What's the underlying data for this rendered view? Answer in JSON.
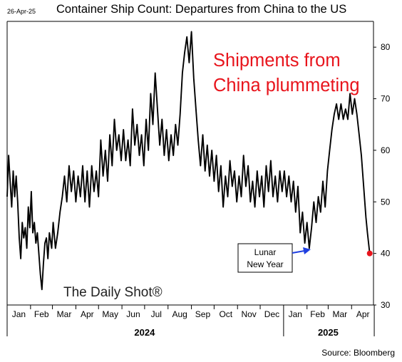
{
  "header": {
    "date": "26-Apr-25",
    "title": "Container Ship Count: Departures from China to the US"
  },
  "footer": {
    "source": "Source: Bloomberg"
  },
  "watermark": "The Daily Shot®",
  "colors": {
    "line": "#000000",
    "annotation_red": "#e8141c",
    "arrow_blue": "#1f3fe0",
    "last_point": "#e8141c"
  },
  "chart_data": {
    "type": "line",
    "title": "Container Ship Count: Departures from China to the US",
    "xlabel": "",
    "ylabel": "",
    "x_range": [
      "2024-01-01",
      "2025-04-30"
    ],
    "ylim": [
      30,
      85
    ],
    "yticks": [
      30,
      40,
      50,
      60,
      70,
      80
    ],
    "y_axis_position": "right",
    "grid": false,
    "legend": "none",
    "month_labels": [
      "Jan",
      "Feb",
      "Mar",
      "Apr",
      "May",
      "Jun",
      "Jul",
      "Aug",
      "Sep",
      "Oct",
      "Nov",
      "Dec",
      "Jan",
      "Feb",
      "Mar",
      "Apr"
    ],
    "year_labels": [
      {
        "label": "2024",
        "date": "2024-07-01"
      },
      {
        "label": "2025",
        "date": "2025-03-01"
      }
    ],
    "annotations": [
      {
        "text": [
          "Shipments from",
          "China plummeting"
        ],
        "color": "#e8141c"
      },
      {
        "text": [
          "Lunar",
          "New Year"
        ],
        "boxed": true,
        "arrow_to": {
          "date": "2025-02-02",
          "value": 41
        }
      }
    ],
    "last_point": {
      "date": "2025-04-25",
      "value": 40
    },
    "series": [
      {
        "points": [
          [
            "2024-01-01",
            51
          ],
          [
            "2024-01-03",
            59
          ],
          [
            "2024-01-05",
            54
          ],
          [
            "2024-01-07",
            49
          ],
          [
            "2024-01-09",
            56
          ],
          [
            "2024-01-11",
            51
          ],
          [
            "2024-01-13",
            55
          ],
          [
            "2024-01-15",
            50
          ],
          [
            "2024-01-17",
            43
          ],
          [
            "2024-01-19",
            39
          ],
          [
            "2024-01-21",
            46
          ],
          [
            "2024-01-23",
            43
          ],
          [
            "2024-01-25",
            45
          ],
          [
            "2024-01-27",
            41
          ],
          [
            "2024-01-29",
            49
          ],
          [
            "2024-01-31",
            45
          ],
          [
            "2024-02-02",
            52
          ],
          [
            "2024-02-04",
            44
          ],
          [
            "2024-02-06",
            46
          ],
          [
            "2024-02-08",
            42
          ],
          [
            "2024-02-10",
            44
          ],
          [
            "2024-02-12",
            40
          ],
          [
            "2024-02-14",
            36
          ],
          [
            "2024-02-16",
            33
          ],
          [
            "2024-02-18",
            38
          ],
          [
            "2024-02-20",
            42
          ],
          [
            "2024-02-22",
            43
          ],
          [
            "2024-02-24",
            39
          ],
          [
            "2024-02-26",
            44
          ],
          [
            "2024-02-29",
            41
          ],
          [
            "2024-03-02",
            46
          ],
          [
            "2024-03-05",
            41
          ],
          [
            "2024-03-08",
            44
          ],
          [
            "2024-03-11",
            48
          ],
          [
            "2024-03-14",
            51
          ],
          [
            "2024-03-17",
            55
          ],
          [
            "2024-03-20",
            50
          ],
          [
            "2024-03-23",
            57
          ],
          [
            "2024-03-26",
            52
          ],
          [
            "2024-03-29",
            56
          ],
          [
            "2024-04-01",
            50
          ],
          [
            "2024-04-04",
            55
          ],
          [
            "2024-04-07",
            51
          ],
          [
            "2024-04-10",
            57
          ],
          [
            "2024-04-13",
            50
          ],
          [
            "2024-04-16",
            56
          ],
          [
            "2024-04-19",
            49
          ],
          [
            "2024-04-22",
            57
          ],
          [
            "2024-04-25",
            52
          ],
          [
            "2024-04-28",
            56
          ],
          [
            "2024-05-01",
            51
          ],
          [
            "2024-05-04",
            62
          ],
          [
            "2024-05-07",
            55
          ],
          [
            "2024-05-10",
            60
          ],
          [
            "2024-05-13",
            54
          ],
          [
            "2024-05-16",
            63
          ],
          [
            "2024-05-19",
            57
          ],
          [
            "2024-05-22",
            66
          ],
          [
            "2024-05-25",
            60
          ],
          [
            "2024-05-28",
            63
          ],
          [
            "2024-05-31",
            58
          ],
          [
            "2024-06-03",
            64
          ],
          [
            "2024-06-06",
            58
          ],
          [
            "2024-06-09",
            62
          ],
          [
            "2024-06-12",
            57
          ],
          [
            "2024-06-15",
            68
          ],
          [
            "2024-06-18",
            61
          ],
          [
            "2024-06-21",
            65
          ],
          [
            "2024-06-24",
            59
          ],
          [
            "2024-06-27",
            63
          ],
          [
            "2024-06-30",
            57
          ],
          [
            "2024-07-03",
            66
          ],
          [
            "2024-07-06",
            60
          ],
          [
            "2024-07-09",
            71
          ],
          [
            "2024-07-12",
            65
          ],
          [
            "2024-07-15",
            75
          ],
          [
            "2024-07-18",
            68
          ],
          [
            "2024-07-21",
            61
          ],
          [
            "2024-07-24",
            66
          ],
          [
            "2024-07-27",
            59
          ],
          [
            "2024-07-30",
            64
          ],
          [
            "2024-08-02",
            58
          ],
          [
            "2024-08-05",
            63
          ],
          [
            "2024-08-08",
            59
          ],
          [
            "2024-08-11",
            65
          ],
          [
            "2024-08-14",
            61
          ],
          [
            "2024-08-17",
            67
          ],
          [
            "2024-08-20",
            75
          ],
          [
            "2024-08-23",
            79
          ],
          [
            "2024-08-26",
            82
          ],
          [
            "2024-08-29",
            77
          ],
          [
            "2024-09-01",
            83
          ],
          [
            "2024-09-04",
            74
          ],
          [
            "2024-09-07",
            68
          ],
          [
            "2024-09-10",
            62
          ],
          [
            "2024-09-13",
            57
          ],
          [
            "2024-09-16",
            63
          ],
          [
            "2024-09-19",
            56
          ],
          [
            "2024-09-22",
            61
          ],
          [
            "2024-09-25",
            55
          ],
          [
            "2024-09-28",
            60
          ],
          [
            "2024-10-01",
            54
          ],
          [
            "2024-10-04",
            59
          ],
          [
            "2024-10-07",
            52
          ],
          [
            "2024-10-10",
            57
          ],
          [
            "2024-10-13",
            49
          ],
          [
            "2024-10-16",
            55
          ],
          [
            "2024-10-19",
            51
          ],
          [
            "2024-10-22",
            58
          ],
          [
            "2024-10-25",
            53
          ],
          [
            "2024-10-28",
            56
          ],
          [
            "2024-10-31",
            50
          ],
          [
            "2024-11-03",
            55
          ],
          [
            "2024-11-06",
            51
          ],
          [
            "2024-11-09",
            59
          ],
          [
            "2024-11-12",
            53
          ],
          [
            "2024-11-15",
            57
          ],
          [
            "2024-11-18",
            50
          ],
          [
            "2024-11-21",
            54
          ],
          [
            "2024-11-24",
            49
          ],
          [
            "2024-11-27",
            56
          ],
          [
            "2024-11-30",
            51
          ],
          [
            "2024-12-03",
            55
          ],
          [
            "2024-12-06",
            49
          ],
          [
            "2024-12-09",
            57
          ],
          [
            "2024-12-12",
            52
          ],
          [
            "2024-12-15",
            58
          ],
          [
            "2024-12-18",
            51
          ],
          [
            "2024-12-21",
            55
          ],
          [
            "2024-12-24",
            50
          ],
          [
            "2024-12-27",
            56
          ],
          [
            "2024-12-30",
            52
          ],
          [
            "2025-01-02",
            56
          ],
          [
            "2025-01-05",
            51
          ],
          [
            "2025-01-08",
            55
          ],
          [
            "2025-01-11",
            50
          ],
          [
            "2025-01-14",
            54
          ],
          [
            "2025-01-17",
            48
          ],
          [
            "2025-01-20",
            53
          ],
          [
            "2025-01-23",
            44
          ],
          [
            "2025-01-26",
            48
          ],
          [
            "2025-01-29",
            42
          ],
          [
            "2025-02-01",
            46
          ],
          [
            "2025-02-04",
            41
          ],
          [
            "2025-02-07",
            45
          ],
          [
            "2025-02-10",
            50
          ],
          [
            "2025-02-13",
            46
          ],
          [
            "2025-02-16",
            51
          ],
          [
            "2025-02-19",
            48
          ],
          [
            "2025-02-22",
            54
          ],
          [
            "2025-02-25",
            49
          ],
          [
            "2025-02-28",
            56
          ],
          [
            "2025-03-03",
            60
          ],
          [
            "2025-03-06",
            64
          ],
          [
            "2025-03-09",
            67
          ],
          [
            "2025-03-12",
            69
          ],
          [
            "2025-03-15",
            66
          ],
          [
            "2025-03-18",
            69
          ],
          [
            "2025-03-21",
            66
          ],
          [
            "2025-03-24",
            68
          ],
          [
            "2025-03-27",
            66
          ],
          [
            "2025-03-30",
            71
          ],
          [
            "2025-04-02",
            67
          ],
          [
            "2025-04-05",
            70
          ],
          [
            "2025-04-08",
            67
          ],
          [
            "2025-04-11",
            63
          ],
          [
            "2025-04-14",
            59
          ],
          [
            "2025-04-17",
            53
          ],
          [
            "2025-04-20",
            47
          ],
          [
            "2025-04-22",
            44
          ],
          [
            "2025-04-25",
            40
          ]
        ]
      }
    ]
  }
}
